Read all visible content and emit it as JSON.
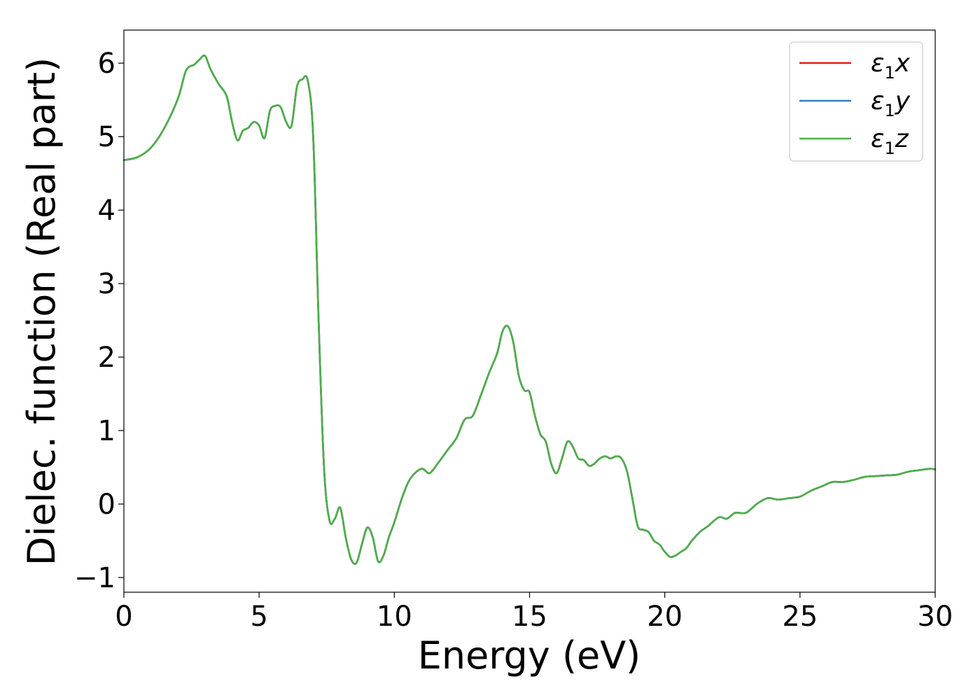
{
  "chart_data": {
    "type": "line",
    "title": "",
    "xlabel": "Energy (eV)",
    "ylabel": "Dielec. function (Real part)",
    "xlim": [
      0,
      30
    ],
    "ylim": [
      -1.2,
      6.45
    ],
    "xticks": [
      0,
      5,
      10,
      15,
      20,
      25,
      30
    ],
    "xtick_labels": [
      "0",
      "5",
      "10",
      "15",
      "20",
      "25",
      "30"
    ],
    "yticks": [
      -1,
      0,
      1,
      2,
      3,
      4,
      5,
      6
    ],
    "ytick_labels": [
      "−1",
      "0",
      "1",
      "2",
      "3",
      "4",
      "5",
      "6"
    ],
    "grid": false,
    "legend_position": "top-right",
    "x": [
      0,
      0.5,
      1.0,
      1.5,
      2.0,
      2.3,
      2.6,
      2.8,
      3.0,
      3.2,
      3.5,
      3.8,
      4.0,
      4.2,
      4.4,
      4.6,
      4.8,
      5.0,
      5.2,
      5.4,
      5.6,
      5.8,
      6.0,
      6.2,
      6.4,
      6.6,
      6.8,
      7.0,
      7.2,
      7.4,
      7.6,
      7.8,
      8.0,
      8.2,
      8.4,
      8.6,
      8.8,
      9.0,
      9.2,
      9.4,
      9.6,
      9.8,
      10.0,
      10.3,
      10.6,
      11.0,
      11.3,
      11.6,
      12.0,
      12.3,
      12.6,
      12.9,
      13.2,
      13.5,
      13.8,
      14.0,
      14.2,
      14.4,
      14.6,
      14.8,
      15.0,
      15.2,
      15.4,
      15.6,
      15.8,
      16.0,
      16.2,
      16.4,
      16.6,
      16.8,
      17.0,
      17.2,
      17.4,
      17.6,
      17.8,
      18.0,
      18.2,
      18.4,
      18.6,
      18.8,
      19.0,
      19.2,
      19.4,
      19.6,
      19.8,
      20.0,
      20.2,
      20.4,
      20.6,
      20.8,
      21.0,
      21.3,
      21.6,
      22.0,
      22.3,
      22.6,
      23.0,
      23.4,
      23.8,
      24.2,
      24.6,
      25.0,
      25.4,
      25.8,
      26.2,
      26.6,
      27.0,
      27.4,
      27.8,
      28.2,
      28.6,
      29.0,
      29.4,
      29.8,
      30.0
    ],
    "series": [
      {
        "name": "ε₁x",
        "name_parts": {
          "base": "ε",
          "sub": "1",
          "suffix": "x"
        },
        "color": "#e41a1c",
        "values": [
          4.68,
          4.72,
          4.85,
          5.12,
          5.52,
          5.9,
          5.98,
          6.05,
          6.1,
          5.92,
          5.72,
          5.55,
          5.2,
          4.95,
          5.08,
          5.12,
          5.2,
          5.15,
          4.98,
          5.35,
          5.42,
          5.4,
          5.2,
          5.15,
          5.68,
          5.78,
          5.76,
          5.0,
          2.5,
          0.5,
          -0.22,
          -0.2,
          -0.05,
          -0.45,
          -0.75,
          -0.8,
          -0.55,
          -0.32,
          -0.45,
          -0.78,
          -0.7,
          -0.45,
          -0.25,
          0.1,
          0.35,
          0.48,
          0.42,
          0.55,
          0.75,
          0.9,
          1.15,
          1.2,
          1.48,
          1.78,
          2.05,
          2.35,
          2.42,
          2.2,
          1.75,
          1.55,
          1.52,
          1.2,
          0.95,
          0.85,
          0.55,
          0.42,
          0.62,
          0.85,
          0.78,
          0.62,
          0.6,
          0.52,
          0.55,
          0.62,
          0.65,
          0.62,
          0.65,
          0.62,
          0.45,
          0.08,
          -0.3,
          -0.35,
          -0.38,
          -0.5,
          -0.55,
          -0.65,
          -0.72,
          -0.7,
          -0.65,
          -0.6,
          -0.5,
          -0.38,
          -0.3,
          -0.18,
          -0.2,
          -0.12,
          -0.12,
          0.0,
          0.08,
          0.06,
          0.08,
          0.1,
          0.18,
          0.24,
          0.3,
          0.3,
          0.33,
          0.37,
          0.38,
          0.39,
          0.4,
          0.44,
          0.46,
          0.48,
          0.47
        ]
      },
      {
        "name": "ε₁y",
        "name_parts": {
          "base": "ε",
          "sub": "1",
          "suffix": "y"
        },
        "color": "#377eb8",
        "values": [
          4.68,
          4.72,
          4.85,
          5.12,
          5.52,
          5.9,
          5.98,
          6.05,
          6.1,
          5.92,
          5.72,
          5.55,
          5.2,
          4.95,
          5.08,
          5.12,
          5.2,
          5.15,
          4.98,
          5.35,
          5.42,
          5.4,
          5.2,
          5.15,
          5.68,
          5.78,
          5.76,
          5.0,
          2.5,
          0.5,
          -0.22,
          -0.2,
          -0.05,
          -0.45,
          -0.75,
          -0.8,
          -0.55,
          -0.32,
          -0.45,
          -0.78,
          -0.7,
          -0.45,
          -0.25,
          0.1,
          0.35,
          0.48,
          0.42,
          0.55,
          0.75,
          0.9,
          1.15,
          1.2,
          1.48,
          1.78,
          2.05,
          2.35,
          2.42,
          2.2,
          1.75,
          1.55,
          1.52,
          1.2,
          0.95,
          0.85,
          0.55,
          0.42,
          0.62,
          0.85,
          0.78,
          0.62,
          0.6,
          0.52,
          0.55,
          0.62,
          0.65,
          0.62,
          0.65,
          0.62,
          0.45,
          0.08,
          -0.3,
          -0.35,
          -0.38,
          -0.5,
          -0.55,
          -0.65,
          -0.72,
          -0.7,
          -0.65,
          -0.6,
          -0.5,
          -0.38,
          -0.3,
          -0.18,
          -0.2,
          -0.12,
          -0.12,
          0.0,
          0.08,
          0.06,
          0.08,
          0.1,
          0.18,
          0.24,
          0.3,
          0.3,
          0.33,
          0.37,
          0.38,
          0.39,
          0.4,
          0.44,
          0.46,
          0.48,
          0.47
        ]
      },
      {
        "name": "ε₁z",
        "name_parts": {
          "base": "ε",
          "sub": "1",
          "suffix": "z"
        },
        "color": "#4daf4a",
        "values": [
          4.68,
          4.72,
          4.85,
          5.12,
          5.52,
          5.9,
          5.98,
          6.05,
          6.1,
          5.92,
          5.72,
          5.55,
          5.2,
          4.95,
          5.08,
          5.12,
          5.2,
          5.15,
          4.98,
          5.35,
          5.42,
          5.4,
          5.2,
          5.15,
          5.68,
          5.78,
          5.76,
          5.0,
          2.5,
          0.5,
          -0.22,
          -0.2,
          -0.05,
          -0.45,
          -0.75,
          -0.8,
          -0.55,
          -0.32,
          -0.45,
          -0.78,
          -0.7,
          -0.45,
          -0.25,
          0.1,
          0.35,
          0.48,
          0.42,
          0.55,
          0.75,
          0.9,
          1.15,
          1.2,
          1.48,
          1.78,
          2.05,
          2.35,
          2.42,
          2.2,
          1.75,
          1.55,
          1.52,
          1.2,
          0.95,
          0.85,
          0.55,
          0.42,
          0.62,
          0.85,
          0.78,
          0.62,
          0.6,
          0.52,
          0.55,
          0.62,
          0.65,
          0.62,
          0.65,
          0.62,
          0.45,
          0.08,
          -0.3,
          -0.35,
          -0.38,
          -0.5,
          -0.55,
          -0.65,
          -0.72,
          -0.7,
          -0.65,
          -0.6,
          -0.5,
          -0.38,
          -0.3,
          -0.18,
          -0.2,
          -0.12,
          -0.12,
          0.0,
          0.08,
          0.06,
          0.08,
          0.1,
          0.18,
          0.24,
          0.3,
          0.3,
          0.33,
          0.37,
          0.38,
          0.39,
          0.4,
          0.44,
          0.46,
          0.48,
          0.47
        ]
      }
    ]
  }
}
